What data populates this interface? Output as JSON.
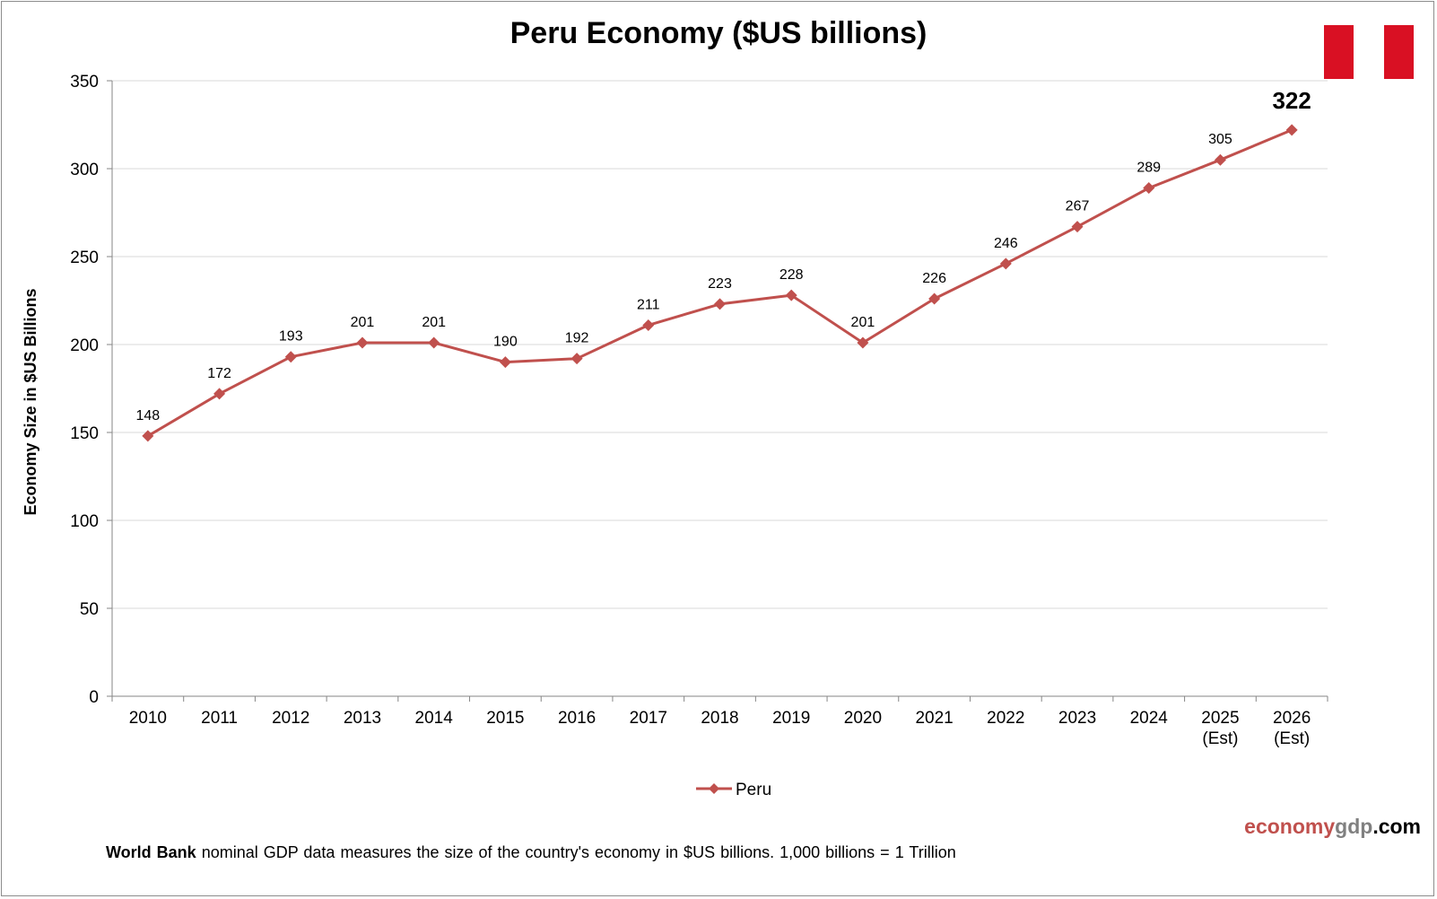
{
  "chart_data": {
    "type": "line",
    "title": "Peru Economy ($US billions)",
    "ylabel": "Economy Size in $US Billions",
    "xlabel": "",
    "ylim": [
      0,
      350
    ],
    "yticks": [
      0,
      50,
      100,
      150,
      200,
      250,
      300,
      350
    ],
    "grid": true,
    "legend_position": "bottom",
    "categories": [
      "2010",
      "2011",
      "2012",
      "2013",
      "2014",
      "2015",
      "2016",
      "2017",
      "2018",
      "2019",
      "2020",
      "2021",
      "2022",
      "2023",
      "2024",
      "2025 (Est)",
      "2026 (Est)"
    ],
    "series": [
      {
        "name": "Peru",
        "color": "#c0504d",
        "values": [
          148,
          172,
          193,
          201,
          201,
          190,
          192,
          211,
          223,
          228,
          201,
          226,
          246,
          267,
          289,
          305,
          322
        ],
        "data_labels": [
          "148",
          "172",
          "193",
          "201",
          "201",
          "190",
          "192",
          "211",
          "223",
          "228",
          "201",
          "226",
          "246",
          "267",
          "289",
          "305",
          "322"
        ]
      }
    ],
    "highlighted_label": "322"
  },
  "flag": {
    "name": "peru-flag",
    "colors": [
      "#d91023",
      "#ffffff",
      "#d91023"
    ]
  },
  "brand": {
    "part1": "economy",
    "part2": "gdp",
    "part3": ".com"
  },
  "footnote": {
    "bold": "World Bank",
    "text": " nominal GDP data  measures the size of the country's economy in $US billions. 1,000 billions = 1 Trillion"
  }
}
